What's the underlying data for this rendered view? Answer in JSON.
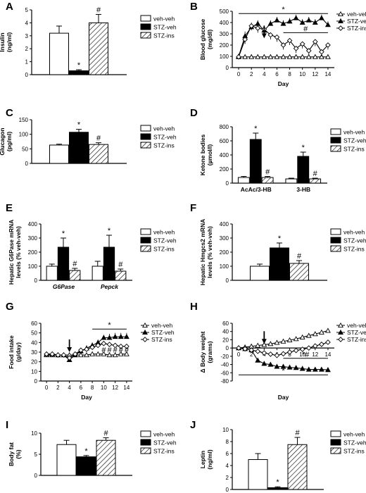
{
  "legend_labels": [
    "veh-veh",
    "STZ-veh",
    "STZ-ins"
  ],
  "colors": {
    "veh": "#ffffff",
    "stz": "#000000",
    "ins_hatch": "#000000",
    "axis": "#000000"
  },
  "chart_data": [
    {
      "id": "A",
      "panel_label": "A",
      "type": "bar",
      "ylabel": "Insulin",
      "yunits": "(ng/ml)",
      "ylim": [
        0,
        5
      ],
      "yticks": [
        0,
        1,
        2,
        3,
        4,
        5
      ],
      "categories": [
        ""
      ],
      "series": [
        {
          "name": "veh-veh",
          "values": [
            3.2
          ],
          "errors": [
            0.55
          ]
        },
        {
          "name": "STZ-veh",
          "values": [
            0.3
          ],
          "errors": [
            0.08
          ]
        },
        {
          "name": "STZ-ins",
          "values": [
            4.0
          ],
          "errors": [
            0.65
          ]
        }
      ],
      "annotations": [
        {
          "series": 1,
          "cat": 0,
          "text": "*"
        },
        {
          "series": 2,
          "cat": 0,
          "text": "#"
        }
      ]
    },
    {
      "id": "B",
      "panel_label": "B",
      "type": "line",
      "ylabel": "Blood glucose",
      "yunits": "(mg/dl)",
      "xlabel": "Day",
      "xlim": [
        -1,
        15
      ],
      "ylim": [
        0,
        500
      ],
      "xticks": [
        0,
        2,
        4,
        6,
        8,
        10,
        12,
        14
      ],
      "yticks": [
        0,
        100,
        200,
        300,
        400,
        500
      ],
      "x": [
        0,
        1,
        2,
        3,
        4,
        5,
        6,
        7,
        8,
        9,
        10,
        11,
        12,
        13,
        14
      ],
      "series": [
        {
          "name": "veh-veh",
          "marker": "triangle-open",
          "values": [
            95,
            95,
            95,
            95,
            95,
            95,
            95,
            95,
            95,
            95,
            95,
            95,
            95,
            95,
            95
          ],
          "errors": [
            8,
            8,
            8,
            8,
            8,
            8,
            8,
            8,
            8,
            8,
            8,
            8,
            8,
            8,
            8
          ]
        },
        {
          "name": "STZ-veh",
          "marker": "triangle-filled",
          "values": [
            100,
            280,
            360,
            390,
            330,
            390,
            420,
            390,
            410,
            440,
            400,
            420,
            400,
            440,
            380
          ],
          "errors": [
            10,
            40,
            40,
            30,
            40,
            30,
            30,
            30,
            30,
            30,
            30,
            30,
            30,
            30,
            30
          ]
        },
        {
          "name": "STZ-ins",
          "marker": "diamond-open",
          "values": [
            95,
            250,
            370,
            350,
            340,
            290,
            270,
            200,
            240,
            170,
            210,
            150,
            230,
            140,
            200
          ],
          "errors": [
            10,
            40,
            40,
            40,
            40,
            40,
            40,
            40,
            40,
            40,
            40,
            40,
            40,
            40,
            40
          ]
        }
      ],
      "arrow_day": 4,
      "sig_lines": [
        {
          "x1": 0,
          "x2": 14,
          "y": 480,
          "text": "*"
        },
        {
          "x1": 7,
          "x2": 14,
          "y": 310,
          "text": "#"
        }
      ]
    },
    {
      "id": "C",
      "panel_label": "C",
      "type": "bar",
      "ylabel": "Glucagon",
      "yunits": "(pg/ml)",
      "ylim": [
        0,
        150
      ],
      "yticks": [
        0,
        50,
        100,
        150
      ],
      "categories": [
        ""
      ],
      "series": [
        {
          "name": "veh-veh",
          "values": [
            63
          ],
          "errors": [
            3
          ]
        },
        {
          "name": "STZ-veh",
          "values": [
            107
          ],
          "errors": [
            10
          ]
        },
        {
          "name": "STZ-ins",
          "values": [
            65
          ],
          "errors": [
            6
          ]
        }
      ],
      "annotations": [
        {
          "series": 1,
          "cat": 0,
          "text": "*"
        },
        {
          "series": 2,
          "cat": 0,
          "text": "#"
        }
      ]
    },
    {
      "id": "D",
      "panel_label": "D",
      "type": "bar",
      "ylabel": "Ketone bodies",
      "yunits": "(µmol/l)",
      "ylim": [
        0,
        800
      ],
      "yticks": [
        0,
        200,
        400,
        600,
        800
      ],
      "categories": [
        "AcAc/3-HB",
        "3-HB"
      ],
      "series": [
        {
          "name": "veh-veh",
          "values": [
            80,
            60
          ],
          "errors": [
            15,
            10
          ]
        },
        {
          "name": "STZ-veh",
          "values": [
            620,
            380
          ],
          "errors": [
            90,
            60
          ]
        },
        {
          "name": "STZ-ins",
          "values": [
            80,
            60
          ],
          "errors": [
            15,
            10
          ]
        }
      ],
      "annotations": [
        {
          "series": 1,
          "cat": 0,
          "text": "*"
        },
        {
          "series": 2,
          "cat": 0,
          "text": "#"
        },
        {
          "series": 1,
          "cat": 1,
          "text": "*"
        },
        {
          "series": 2,
          "cat": 1,
          "text": "#"
        }
      ]
    },
    {
      "id": "E",
      "panel_label": "E",
      "type": "bar",
      "ylabel": "Hepatic G6Pase mRNA",
      "yunits": "levels (% veh-veh)",
      "ylim": [
        0,
        400
      ],
      "yticks": [
        0,
        100,
        200,
        300,
        400
      ],
      "categories": [
        "G6Pase",
        "Pepck"
      ],
      "series": [
        {
          "name": "veh-veh",
          "values": [
            100,
            100
          ],
          "errors": [
            15,
            35
          ]
        },
        {
          "name": "STZ-veh",
          "values": [
            235,
            235
          ],
          "errors": [
            65,
            85
          ]
        },
        {
          "name": "STZ-ins",
          "values": [
            70,
            65
          ],
          "errors": [
            15,
            15
          ]
        }
      ],
      "annotations": [
        {
          "series": 1,
          "cat": 0,
          "text": "*"
        },
        {
          "series": 2,
          "cat": 0,
          "text": "#"
        },
        {
          "series": 1,
          "cat": 1,
          "text": "*"
        },
        {
          "series": 2,
          "cat": 1,
          "text": "#"
        }
      ]
    },
    {
      "id": "F",
      "panel_label": "F",
      "type": "bar",
      "ylabel": "Hepatic Hmgcs2 mRNA",
      "yunits": "levels (% veh-veh)",
      "ylim": [
        0,
        400
      ],
      "yticks": [
        0,
        100,
        200,
        300,
        400
      ],
      "categories": [
        ""
      ],
      "series": [
        {
          "name": "veh-veh",
          "values": [
            100
          ],
          "errors": [
            15
          ]
        },
        {
          "name": "STZ-veh",
          "values": [
            230
          ],
          "errors": [
            35
          ]
        },
        {
          "name": "STZ-ins",
          "values": [
            120
          ],
          "errors": [
            20
          ]
        }
      ],
      "annotations": [
        {
          "series": 1,
          "cat": 0,
          "text": "*"
        },
        {
          "series": 2,
          "cat": 0,
          "text": "#"
        }
      ]
    },
    {
      "id": "G",
      "panel_label": "G",
      "type": "line",
      "ylabel": "Food intake",
      "yunits": "(g/day)",
      "xlabel": "Day",
      "xlim": [
        -1,
        15
      ],
      "ylim": [
        0,
        60
      ],
      "xticks": [
        0,
        2,
        4,
        6,
        8,
        10,
        12,
        14
      ],
      "yticks": [
        0,
        10,
        20,
        30,
        40,
        50,
        60
      ],
      "x": [
        0,
        1,
        2,
        3,
        4,
        5,
        6,
        7,
        8,
        9,
        10,
        11,
        12,
        13,
        14
      ],
      "series": [
        {
          "name": "veh-veh",
          "marker": "triangle-open",
          "values": [
            27,
            27,
            27,
            27,
            27,
            27,
            27,
            27,
            28,
            28,
            28,
            27,
            27,
            28,
            28
          ],
          "errors": [
            1,
            1,
            1,
            1,
            1,
            1,
            1,
            1,
            1,
            1,
            1,
            1,
            1,
            1,
            1
          ]
        },
        {
          "name": "STZ-veh",
          "marker": "triangle-filled",
          "values": [
            28,
            28,
            27,
            27,
            22,
            27,
            31,
            34,
            37,
            40,
            45,
            45,
            46,
            46,
            46
          ],
          "errors": [
            1,
            1,
            1,
            1,
            2,
            2,
            2,
            3,
            3,
            3,
            3,
            4,
            4,
            4,
            4
          ]
        },
        {
          "name": "STZ-ins",
          "marker": "diamond-open",
          "values": [
            28,
            28,
            27,
            27,
            24,
            28,
            32,
            33,
            35,
            37,
            39,
            38,
            37,
            36,
            36
          ],
          "errors": [
            1,
            1,
            1,
            1,
            2,
            2,
            2,
            2,
            2,
            2,
            2,
            2,
            2,
            2,
            2
          ]
        }
      ],
      "arrow_day": 4,
      "sig_lines": [
        {
          "x1": 8,
          "x2": 14,
          "y": 54,
          "text": "*"
        }
      ],
      "point_marks": [
        {
          "x": 10,
          "y": 32,
          "text": "#"
        },
        {
          "x": 11,
          "y": 32,
          "text": "#"
        },
        {
          "x": 12,
          "y": 32,
          "text": "#"
        },
        {
          "x": 13,
          "y": 32,
          "text": "#"
        },
        {
          "x": 14,
          "y": 32,
          "text": "#"
        }
      ]
    },
    {
      "id": "H",
      "panel_label": "H",
      "type": "line",
      "ylabel": "Δ Body weight",
      "yunits": "(grams)",
      "xlabel": "Day",
      "xlim": [
        -1,
        15
      ],
      "ylim": [
        -80,
        60
      ],
      "xticks": [
        0,
        2,
        4,
        6,
        8,
        10,
        12,
        14
      ],
      "yticks": [
        -80,
        -60,
        -40,
        -20,
        0,
        20,
        40,
        60
      ],
      "x": [
        0,
        1,
        2,
        3,
        4,
        5,
        6,
        7,
        8,
        9,
        10,
        11,
        12,
        13,
        14
      ],
      "series": [
        {
          "name": "veh-veh",
          "marker": "triangle-open",
          "values": [
            0,
            2,
            4,
            6,
            8,
            10,
            13,
            16,
            19,
            22,
            26,
            30,
            34,
            38,
            42
          ],
          "errors": [
            2,
            2,
            2,
            3,
            3,
            3,
            3,
            3,
            3,
            3,
            3,
            3,
            3,
            3,
            3
          ]
        },
        {
          "name": "STZ-veh",
          "marker": "triangle-filled",
          "values": [
            0,
            -2,
            -5,
            -30,
            -38,
            -40,
            -45,
            -45,
            -47,
            -48,
            -50,
            -52,
            -52,
            -52,
            -53
          ],
          "errors": [
            2,
            2,
            2,
            3,
            3,
            3,
            3,
            3,
            3,
            3,
            3,
            3,
            3,
            3,
            3
          ]
        },
        {
          "name": "STZ-ins",
          "marker": "diamond-open",
          "values": [
            0,
            -2,
            -5,
            -8,
            -12,
            -15,
            -18,
            -14,
            -10,
            -6,
            -3,
            0,
            5,
            9,
            14
          ],
          "errors": [
            2,
            2,
            2,
            3,
            3,
            3,
            3,
            3,
            4,
            4,
            4,
            5,
            5,
            5,
            5
          ]
        }
      ],
      "arrow_day": 4,
      "sig_lines": [
        {
          "x1": 7,
          "x2": 14,
          "y": -25,
          "text": "*#"
        },
        {
          "x1": 0,
          "x2": 14,
          "y": -65,
          "text": "*"
        }
      ]
    },
    {
      "id": "I",
      "panel_label": "I",
      "type": "bar",
      "ylabel": "Body fat",
      "yunits": "(%)",
      "ylim": [
        0,
        10
      ],
      "yticks": [
        0,
        5,
        10
      ],
      "categories": [
        ""
      ],
      "series": [
        {
          "name": "veh-veh",
          "values": [
            7.3
          ],
          "errors": [
            1.0
          ]
        },
        {
          "name": "STZ-veh",
          "values": [
            4.4
          ],
          "errors": [
            0.3
          ]
        },
        {
          "name": "STZ-ins",
          "values": [
            8.3
          ],
          "errors": [
            0.6
          ]
        }
      ],
      "annotations": [
        {
          "series": 1,
          "cat": 0,
          "text": "*"
        },
        {
          "series": 2,
          "cat": 0,
          "text": "#"
        }
      ]
    },
    {
      "id": "J",
      "panel_label": "J",
      "type": "bar",
      "ylabel": "Leptin",
      "yunits": "(ng/ml)",
      "ylim": [
        0,
        10
      ],
      "yticks": [
        0,
        2,
        4,
        6,
        8,
        10
      ],
      "categories": [
        ""
      ],
      "series": [
        {
          "name": "veh-veh",
          "values": [
            5.0
          ],
          "errors": [
            1.0
          ]
        },
        {
          "name": "STZ-veh",
          "values": [
            0.3
          ],
          "errors": [
            0.15
          ]
        },
        {
          "name": "STZ-ins",
          "values": [
            7.5
          ],
          "errors": [
            1.2
          ]
        }
      ],
      "annotations": [
        {
          "series": 1,
          "cat": 0,
          "text": "*"
        },
        {
          "series": 2,
          "cat": 0,
          "text": "#"
        }
      ]
    }
  ]
}
